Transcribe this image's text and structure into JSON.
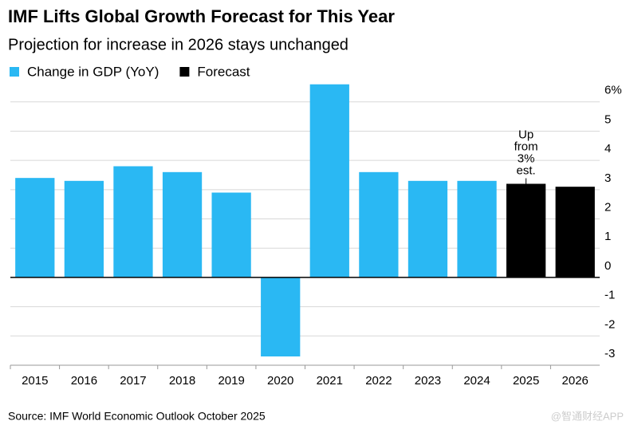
{
  "chart_data": {
    "type": "bar",
    "title": "IMF Lifts Global Growth Forecast for This Year",
    "subtitle": "Projection for increase in 2026 stays unchanged",
    "categories": [
      "2015",
      "2016",
      "2017",
      "2018",
      "2019",
      "2020",
      "2021",
      "2022",
      "2023",
      "2024",
      "2025",
      "2026"
    ],
    "series": [
      {
        "name": "Change in GDP (YoY)",
        "color": "#2ab8f3",
        "values": [
          3.4,
          3.3,
          3.8,
          3.6,
          2.9,
          -2.7,
          6.6,
          3.6,
          3.3,
          3.3,
          null,
          null
        ]
      },
      {
        "name": "Forecast",
        "color": "#000000",
        "values": [
          null,
          null,
          null,
          null,
          null,
          null,
          null,
          null,
          null,
          null,
          3.2,
          3.1
        ]
      }
    ],
    "ylim": [
      -3,
      6.8
    ],
    "yticks": [
      -3,
      -2,
      -1,
      0,
      1,
      2,
      3,
      4,
      5,
      {
        "value": 6,
        "label": "6%"
      }
    ],
    "grid": true,
    "annotation": [
      "Up",
      "from",
      "3%",
      "est."
    ],
    "source": "Source: IMF World Economic Outlook October 2025",
    "watermark": "@智通财经APP"
  }
}
